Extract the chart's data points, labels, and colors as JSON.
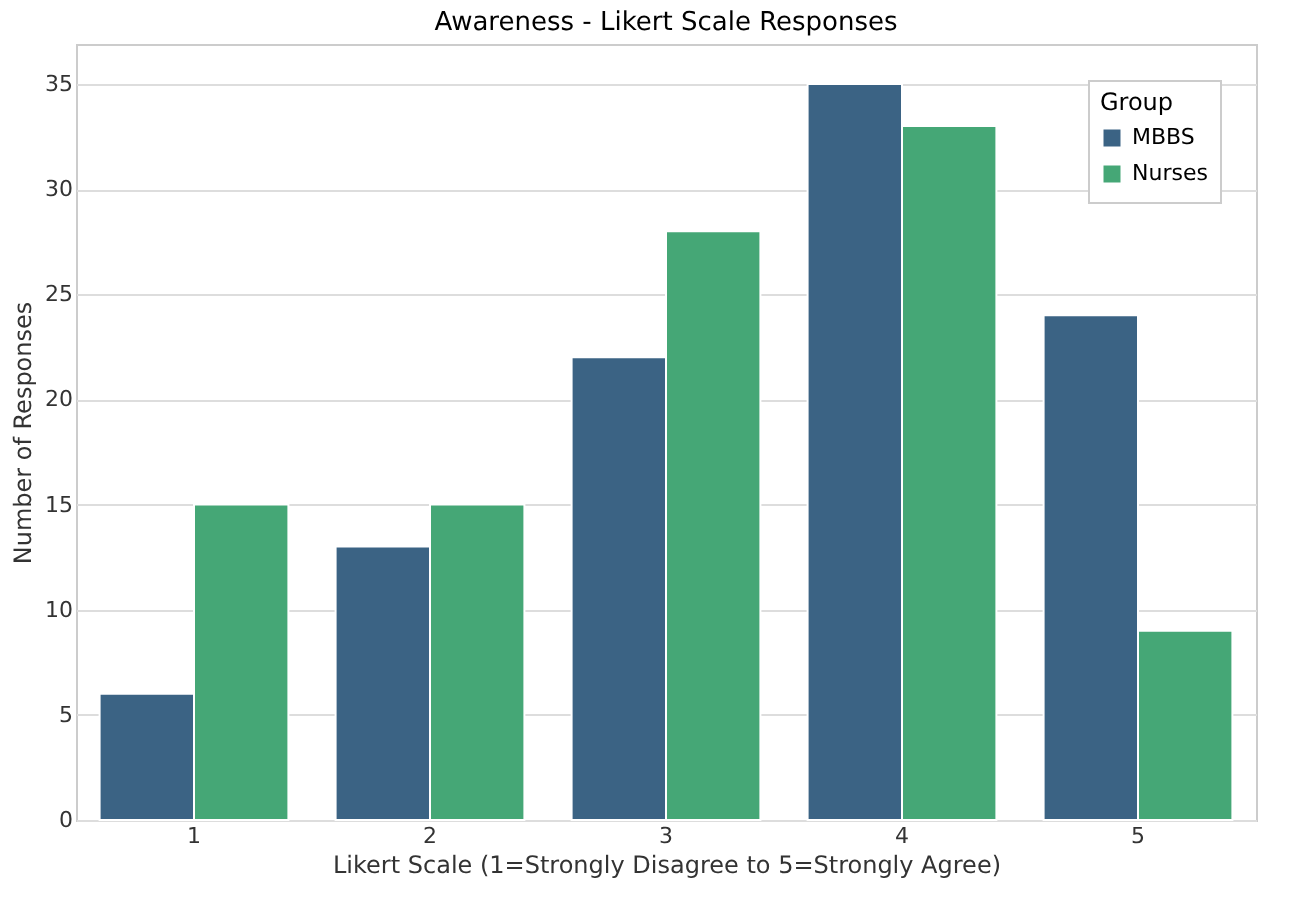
{
  "chart_data": {
    "type": "bar",
    "title": "Awareness - Likert Scale Responses",
    "xlabel": "Likert Scale (1=Strongly Disagree to 5=Strongly Agree)",
    "ylabel": "Number of Responses",
    "legend_title": "Group",
    "categories": [
      "1",
      "2",
      "3",
      "4",
      "5"
    ],
    "series": [
      {
        "name": "MBBS",
        "color": "#3b6384",
        "values": [
          6,
          13,
          22,
          35,
          24
        ]
      },
      {
        "name": "Nurses",
        "color": "#45a776",
        "values": [
          15,
          15,
          28,
          33,
          9
        ]
      }
    ],
    "ylim": [
      0,
      36.9
    ],
    "yticks": [
      0,
      5,
      10,
      15,
      20,
      25,
      30,
      35
    ],
    "grid": "y",
    "legend": "top right"
  }
}
